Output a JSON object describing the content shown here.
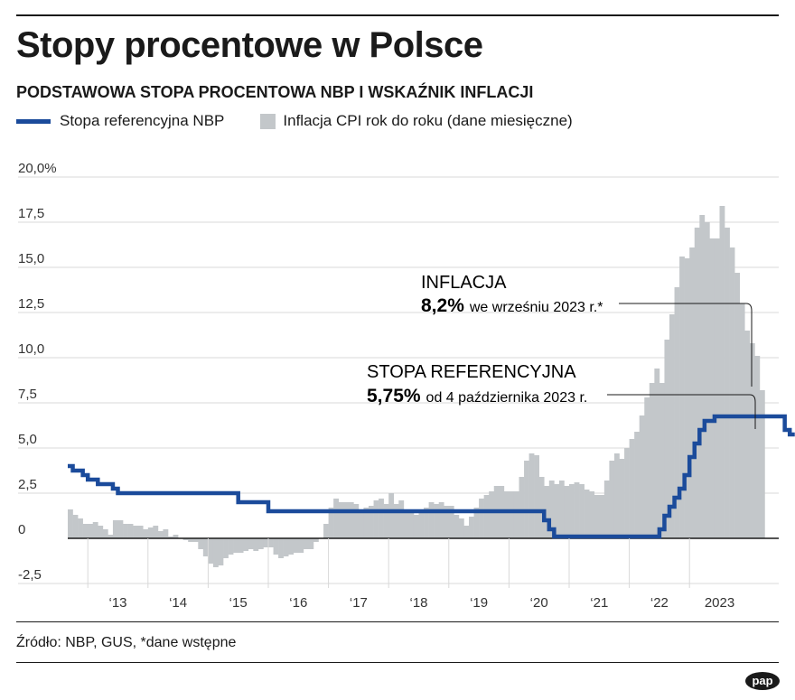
{
  "header": {
    "title": "Stopy procentowe w Polsce",
    "subtitle": "PODSTAWOWA STOPA PROCENTOWA NBP I WSKAŹNIK INFLACJI"
  },
  "legend": {
    "rate_label": "Stopa referencyjna NBP",
    "cpi_label": "Inflacja CPI rok do roku (dane miesięczne)"
  },
  "annotations": {
    "inflation": {
      "heading": "INFLACJA",
      "value": "8,2%",
      "text": "we wrześniu 2023 r.*"
    },
    "rate": {
      "heading": "STOPA REFERENCYJNA",
      "value": "5,75%",
      "text": "od 4 października 2023 r."
    }
  },
  "footer": {
    "source": "Źródło: NBP, GUS, *dane wstępne"
  },
  "logo_text": "pap",
  "colors": {
    "rate_line": "#1b4b9b",
    "cpi_bars": "#c3c7ca",
    "grid": "#d9d9d9",
    "zero_line": "#1a1a1a"
  },
  "chart_data": {
    "type": "bar",
    "grid": true,
    "y_range": [
      -2.5,
      20
    ],
    "y_ticks": [
      {
        "value": 20,
        "label": "20,0%"
      },
      {
        "value": 17.5,
        "label": "17,5"
      },
      {
        "value": 15,
        "label": "15,0"
      },
      {
        "value": 12.5,
        "label": "12,5"
      },
      {
        "value": 10,
        "label": "10,0"
      },
      {
        "value": 7.5,
        "label": "7,5"
      },
      {
        "value": 5,
        "label": "5,0"
      },
      {
        "value": 2.5,
        "label": "2,5"
      },
      {
        "value": 0,
        "label": "0"
      },
      {
        "value": -2.5,
        "label": "-2,5"
      }
    ],
    "x_ticks": [
      {
        "year": 2013,
        "label": "‘13"
      },
      {
        "year": 2014,
        "label": "‘14"
      },
      {
        "year": 2015,
        "label": "‘15"
      },
      {
        "year": 2016,
        "label": "‘16"
      },
      {
        "year": 2017,
        "label": "‘17"
      },
      {
        "year": 2018,
        "label": "‘18"
      },
      {
        "year": 2019,
        "label": "‘19"
      },
      {
        "year": 2020,
        "label": "‘20"
      },
      {
        "year": 2021,
        "label": "‘21"
      },
      {
        "year": 2022,
        "label": "‘22"
      },
      {
        "year": 2023,
        "label": "2023"
      }
    ],
    "series": [
      {
        "name": "Inflacja CPI rok do roku (dane miesięczne)",
        "type": "bar",
        "start_month": "2012-09",
        "values": [
          1.6,
          1.3,
          1.1,
          0.8,
          0.8,
          0.9,
          0.7,
          0.5,
          0.2,
          1.0,
          1.0,
          0.8,
          0.8,
          0.7,
          0.7,
          0.5,
          0.6,
          0.7,
          0.4,
          0.5,
          0.1,
          0.2,
          0.0,
          -0.1,
          -0.2,
          -0.2,
          -0.6,
          -1.0,
          -1.4,
          -1.6,
          -1.5,
          -1.1,
          -0.9,
          -0.8,
          -0.8,
          -0.7,
          -0.6,
          -0.7,
          -0.6,
          -0.5,
          -0.5,
          -0.9,
          -1.1,
          -1.0,
          -0.9,
          -0.8,
          -0.8,
          -0.6,
          -0.6,
          -0.2,
          0.0,
          0.8,
          1.7,
          2.2,
          2.0,
          2.0,
          2.0,
          1.9,
          1.5,
          1.7,
          1.8,
          2.1,
          2.2,
          1.9,
          2.5,
          1.9,
          2.1,
          1.6,
          1.4,
          1.3,
          1.6,
          1.7,
          2.0,
          1.9,
          2.0,
          1.8,
          1.8,
          1.3,
          1.1,
          0.7,
          1.2,
          1.7,
          2.2,
          2.4,
          2.6,
          2.9,
          2.9,
          2.6,
          2.6,
          2.6,
          3.4,
          4.3,
          4.7,
          4.6,
          3.4,
          2.9,
          3.2,
          3.0,
          3.2,
          2.9,
          3.0,
          3.1,
          3.0,
          2.7,
          2.6,
          2.4,
          2.4,
          3.2,
          4.3,
          4.7,
          4.4,
          5.0,
          5.5,
          5.9,
          6.8,
          7.8,
          8.6,
          9.4,
          8.6,
          11.0,
          12.4,
          13.9,
          15.6,
          15.5,
          16.1,
          17.2,
          17.9,
          17.5,
          16.6,
          16.6,
          18.4,
          17.2,
          16.1,
          14.7,
          13.0,
          11.5,
          10.8,
          10.1,
          8.2
        ]
      },
      {
        "name": "Stopa referencyjna NBP",
        "type": "step-line",
        "start_month": "2012-09",
        "values": [
          4.0,
          3.75,
          3.75,
          3.5,
          3.25,
          3.25,
          3.0,
          3.0,
          3.0,
          2.75,
          2.5,
          2.5,
          2.5,
          2.5,
          2.5,
          2.5,
          2.5,
          2.5,
          2.5,
          2.5,
          2.5,
          2.5,
          2.5,
          2.5,
          2.5,
          2.5,
          2.5,
          2.5,
          2.5,
          2.5,
          2.5,
          2.5,
          2.5,
          2.5,
          2.0,
          2.0,
          2.0,
          2.0,
          2.0,
          2.0,
          1.5,
          1.5,
          1.5,
          1.5,
          1.5,
          1.5,
          1.5,
          1.5,
          1.5,
          1.5,
          1.5,
          1.5,
          1.5,
          1.5,
          1.5,
          1.5,
          1.5,
          1.5,
          1.5,
          1.5,
          1.5,
          1.5,
          1.5,
          1.5,
          1.5,
          1.5,
          1.5,
          1.5,
          1.5,
          1.5,
          1.5,
          1.5,
          1.5,
          1.5,
          1.5,
          1.5,
          1.5,
          1.5,
          1.5,
          1.5,
          1.5,
          1.5,
          1.5,
          1.5,
          1.5,
          1.5,
          1.5,
          1.5,
          1.5,
          1.5,
          1.5,
          1.5,
          1.5,
          1.5,
          1.5,
          1.0,
          0.5,
          0.1,
          0.1,
          0.1,
          0.1,
          0.1,
          0.1,
          0.1,
          0.1,
          0.1,
          0.1,
          0.1,
          0.1,
          0.1,
          0.1,
          0.1,
          0.1,
          0.1,
          0.1,
          0.1,
          0.1,
          0.1,
          0.5,
          1.25,
          1.75,
          2.25,
          2.75,
          3.5,
          4.5,
          5.25,
          6.0,
          6.5,
          6.5,
          6.75,
          6.75,
          6.75,
          6.75,
          6.75,
          6.75,
          6.75,
          6.75,
          6.75,
          6.75,
          6.75,
          6.75,
          6.75,
          6.75,
          6.0,
          5.75
        ]
      }
    ]
  }
}
